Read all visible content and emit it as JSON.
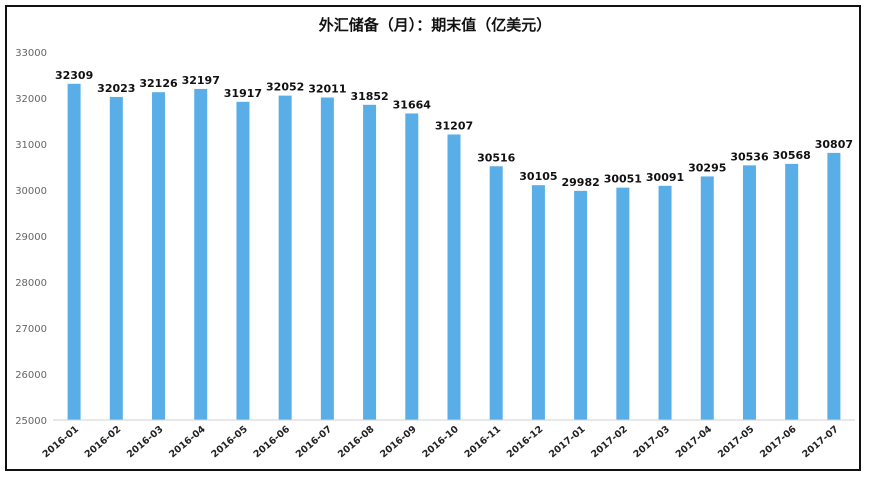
{
  "chart_data": {
    "type": "bar",
    "title": "外汇储备（月）：期末值（亿美元）",
    "categories": [
      "2016-01",
      "2016-02",
      "2016-03",
      "2016-04",
      "2016-05",
      "2016-06",
      "2016-07",
      "2016-08",
      "2016-09",
      "2016-10",
      "2016-11",
      "2016-12",
      "2017-01",
      "2017-02",
      "2017-03",
      "2017-04",
      "2017-05",
      "2017-06",
      "2017-07"
    ],
    "values": [
      32309,
      32023,
      32126,
      32197,
      31917,
      32052,
      32011,
      31852,
      31664,
      31207,
      30516,
      30105,
      29982,
      30051,
      30091,
      30295,
      30536,
      30568,
      30807
    ],
    "ylim": [
      25000,
      33000
    ],
    "yticks": [
      25000,
      26000,
      27000,
      28000,
      29000,
      30000,
      31000,
      32000,
      33000
    ],
    "bar_color": "#5aaee8",
    "grid": false,
    "legend": "none"
  }
}
